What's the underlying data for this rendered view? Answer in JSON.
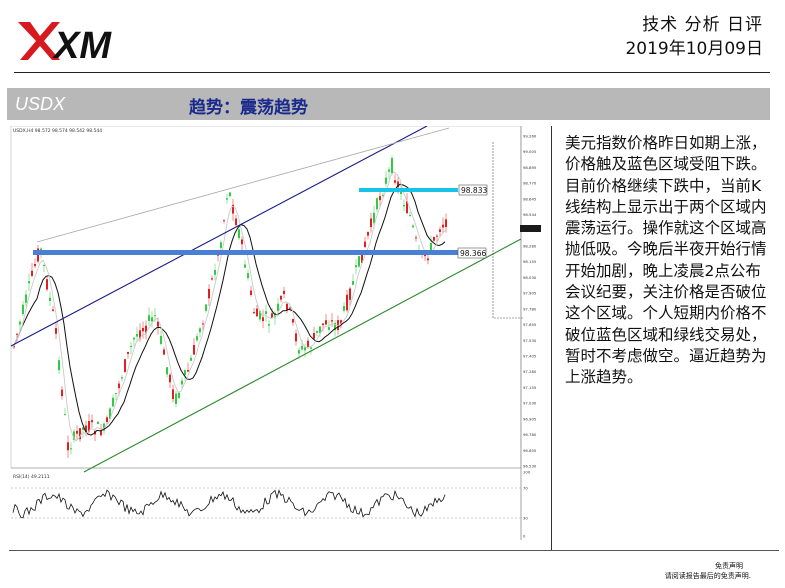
{
  "brand": {
    "logo_text": "XM",
    "logo_color": "#d71920"
  },
  "header": {
    "report_type": "技术 分析 日评",
    "date": "2019年10月09日"
  },
  "section": {
    "symbol": "USDX",
    "trend_label": "趋势：震荡趋势"
  },
  "chart": {
    "info_line": "USDX,H4  98.572 98.574 98.542 98.544",
    "rsi_label": "RSI(14) 49.2111",
    "resistance_label": "98.833",
    "support_label": "98.366",
    "price_ticks": [
      "99.260",
      "99.005",
      "98.895",
      "98.770",
      "98.645",
      "98.544",
      "98.405",
      "98.280",
      "98.155",
      "98.030",
      "97.905",
      "97.780",
      "97.655",
      "97.530",
      "97.405",
      "97.280",
      "97.155",
      "97.030",
      "96.905",
      "96.780",
      "96.655",
      "96.530"
    ],
    "rsi_ticks": [
      "100",
      "70",
      "30",
      "0"
    ],
    "colors": {
      "resistance": "#19c3e8",
      "support": "#4a7fd6",
      "upper_channel": "#1a1a8a",
      "lower_channel": "#2a8a2a",
      "up_candle": "#2ecc40",
      "down_candle": "#e02020"
    }
  },
  "commentary": "美元指数价格昨日如期上涨，价格触及蓝色区域受阻下跌。目前价格继续下跌中，当前K线结构上显示出于两个区域内震荡运行。操作就这个区域高抛低吸。今晚后半夜开始行情开始加剧，晚上凌晨2点公布会议纪要，关注价格是否破位这个区域。个人短期内价格不破位蓝色区域和绿线交易处，暂时不考虑做空。逼近趋势为上涨趋势。",
  "disclaimer": {
    "title": "免责声明",
    "text": "请阅读报告最后的免责声明."
  }
}
